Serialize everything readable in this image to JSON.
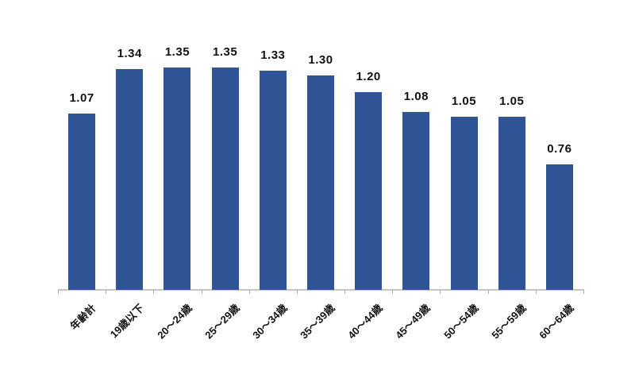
{
  "chart_data": {
    "type": "bar",
    "categories": [
      "年齢計",
      "19歳以下",
      "20～24歳",
      "25～29歳",
      "30～34歳",
      "35～39歳",
      "40～44歳",
      "45～49歳",
      "50～54歳",
      "55～59歳",
      "60～64歳"
    ],
    "values": [
      1.07,
      1.34,
      1.35,
      1.35,
      1.33,
      1.3,
      1.2,
      1.08,
      1.05,
      1.05,
      0.76
    ],
    "value_labels": [
      "1.07",
      "1.34",
      "1.35",
      "1.35",
      "1.33",
      "1.30",
      "1.20",
      "1.08",
      "1.05",
      "1.05",
      "0.76"
    ],
    "title": "",
    "xlabel": "",
    "ylabel": "",
    "ylim": [
      0,
      1.45
    ],
    "grid": false,
    "legend": null,
    "colors": {
      "bar": "#2F5597",
      "axis_line": "#C6C6C6",
      "tick": "#ADADAD",
      "label": "#111111"
    }
  }
}
